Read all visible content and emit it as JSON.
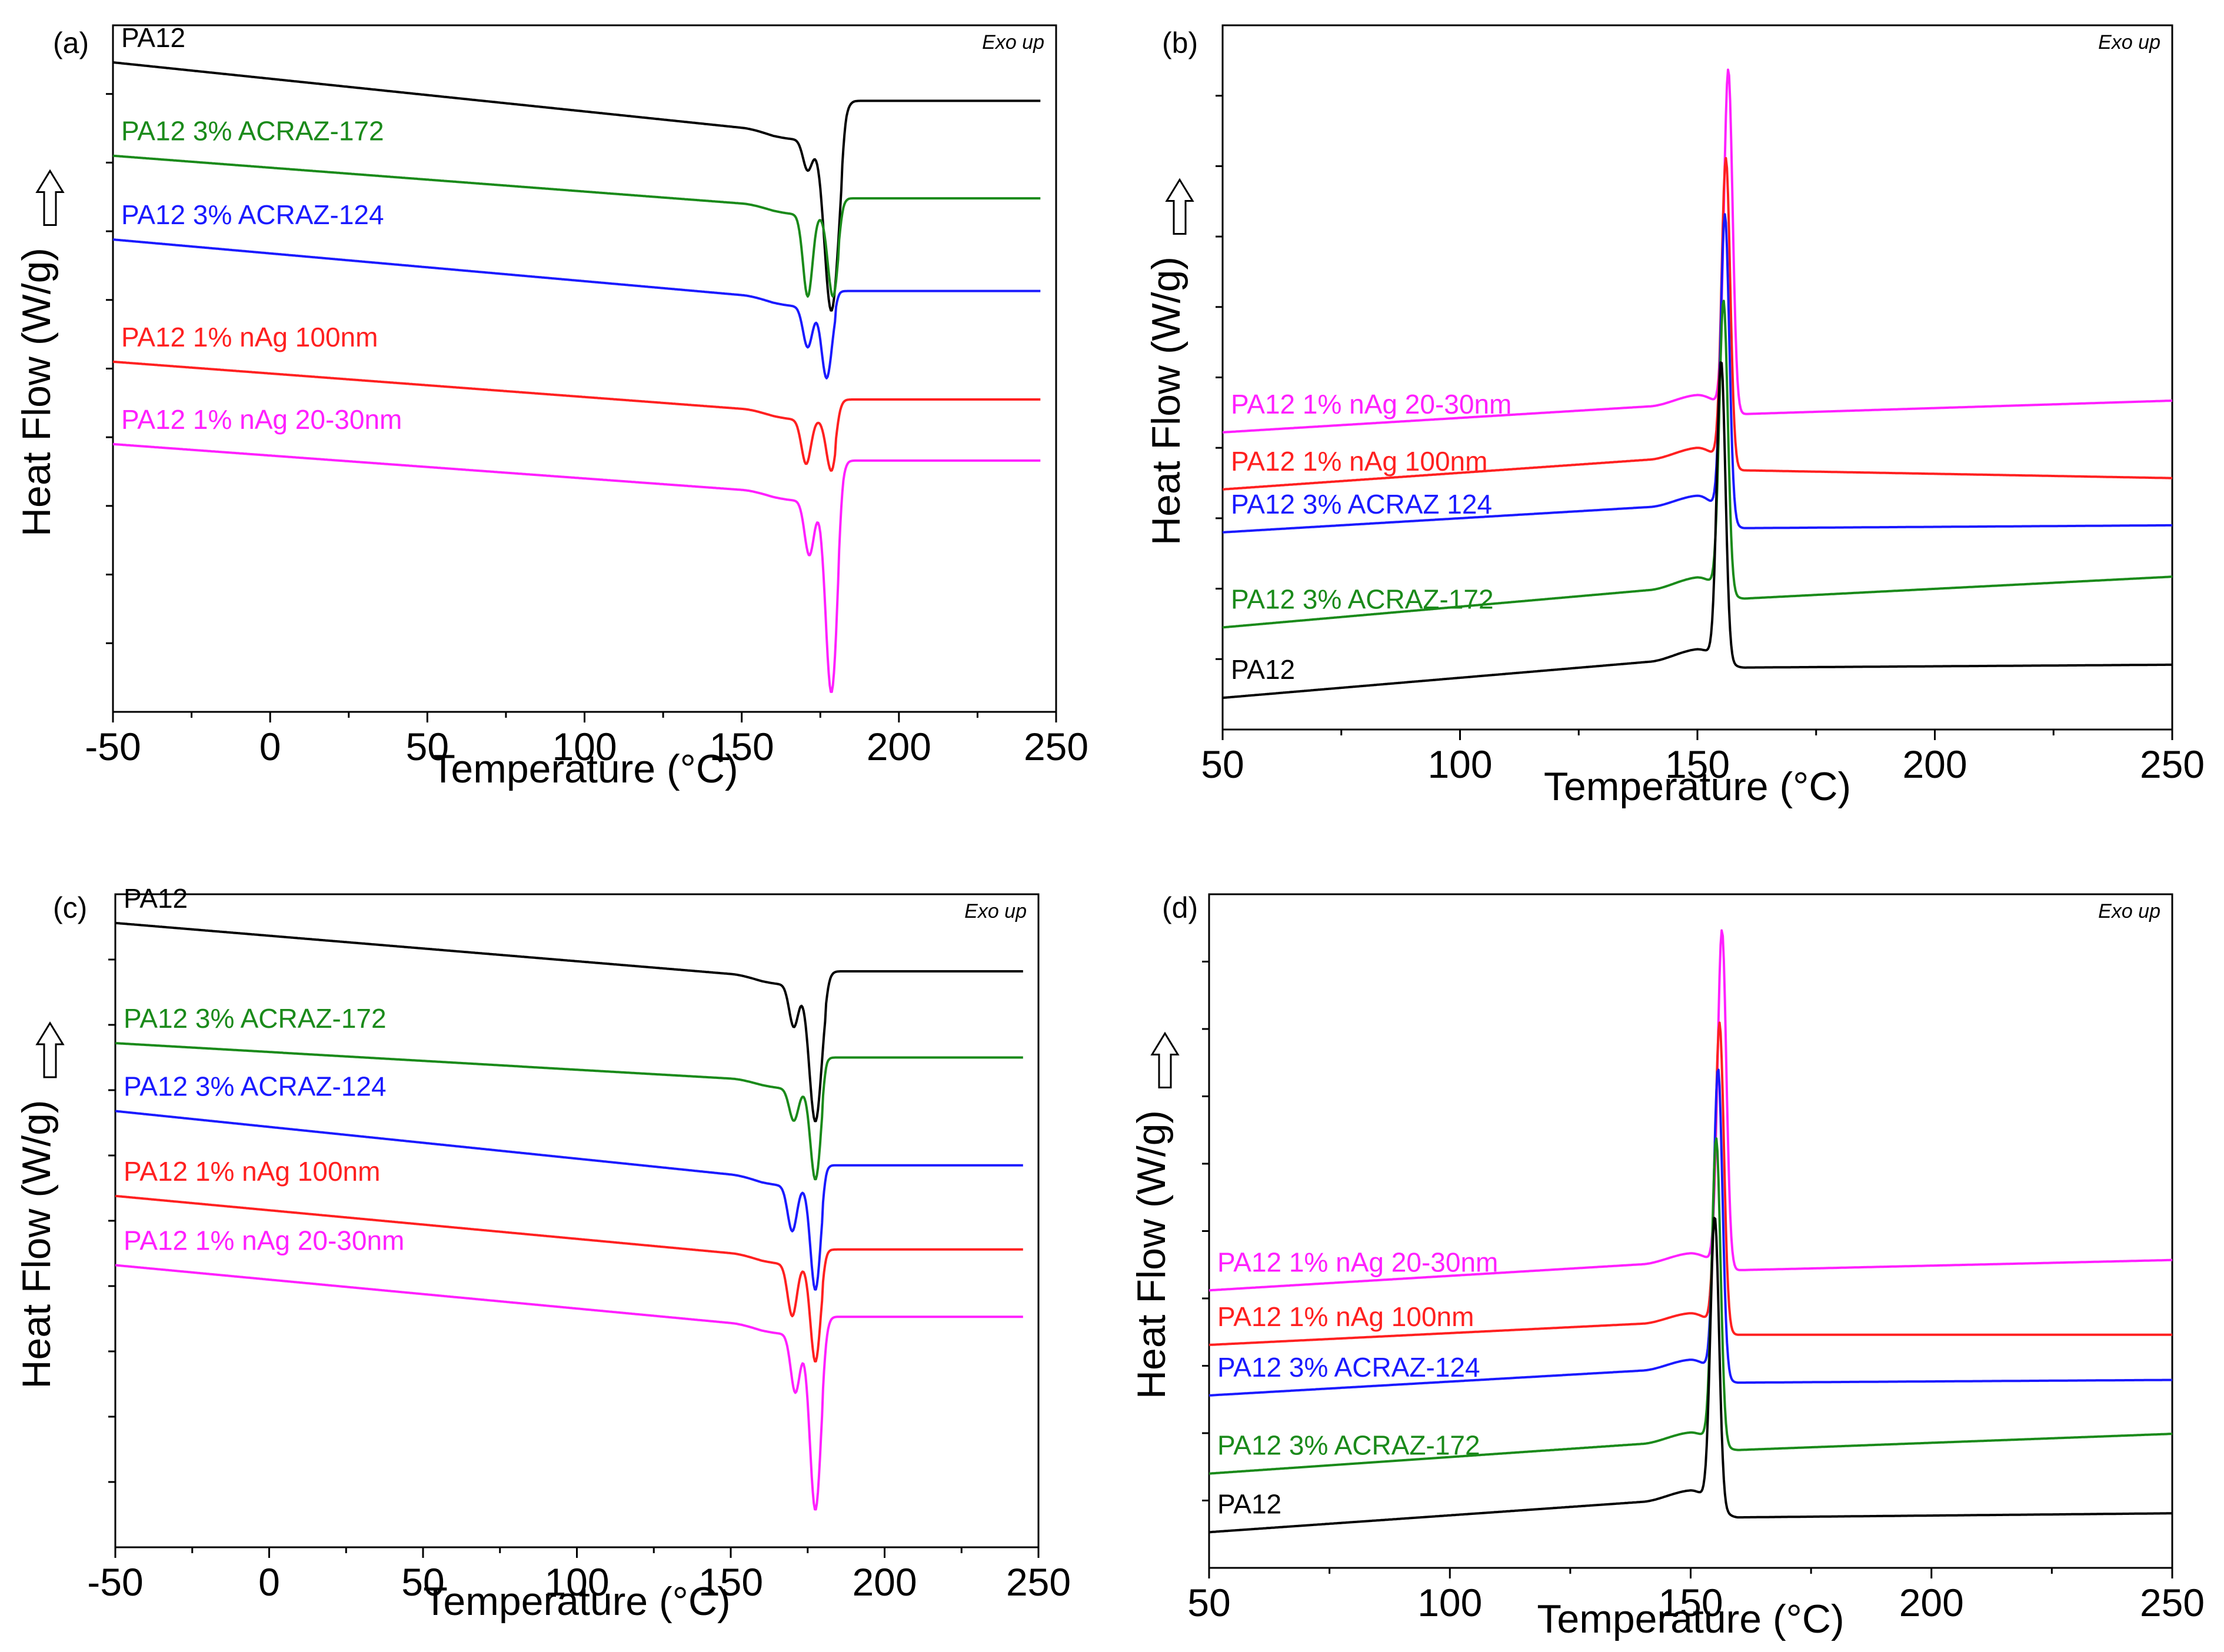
{
  "figure": {
    "exo_label": "Exo up",
    "colors": {
      "PA12": "#000000",
      "PA12 3% ACRAZ-172": "#1a8a1a",
      "PA12 3% ACRAZ-124": "#1a1aff",
      "PA12 1% nAg 100nm": "#ff2020",
      "PA12 1% nAg 20-30nm": "#ff20ff"
    }
  },
  "chart_data": [
    {
      "panel": "(a)",
      "type": "line",
      "kind": "heating",
      "xlabel": "Temperature (°C)",
      "ylabel": "Heat Flow (W/g)",
      "xlim": [
        -50,
        250
      ],
      "xticks": [
        -50,
        0,
        50,
        100,
        150,
        200,
        250
      ],
      "ylim": [
        0,
        100
      ],
      "annotation": "Exo up",
      "series": [
        {
          "name": "PA12",
          "label": "PA12",
          "color_key": "PA12",
          "baseline_start": 94.6,
          "baseline_pre": 84.6,
          "baseline_post": 89.0,
          "peaks": [
            {
              "x": 171,
              "depth": 4.5,
              "width": 1.5
            },
            {
              "x": 178.5,
              "depth": 25,
              "width": 2.2
            }
          ],
          "onset": 182
        },
        {
          "name": "PA12 3% ACRAZ-172",
          "label": "PA12 3% ACRAZ-172",
          "color_key": "PA12 3% ACRAZ-172",
          "baseline_start": 81.0,
          "baseline_pre": 73.7,
          "baseline_post": 74.8,
          "peaks": [
            {
              "x": 171,
              "depth": 12,
              "width": 1.5
            },
            {
              "x": 179,
              "depth": 12,
              "width": 1.6
            }
          ],
          "onset": 181
        },
        {
          "name": "PA12 3% ACRAZ-124",
          "label": "PA12 3% ACRAZ-124",
          "color_key": "PA12 3% ACRAZ-124",
          "baseline_start": 68.8,
          "baseline_pre": 60.3,
          "baseline_post": 61.3,
          "peaks": [
            {
              "x": 171,
              "depth": 6,
              "width": 1.5
            },
            {
              "x": 177,
              "depth": 10.5,
              "width": 1.6
            }
          ],
          "onset": 180
        },
        {
          "name": "PA12 1% nAg 100nm",
          "label": "PA12 1% nAg 100nm",
          "color_key": "PA12 1% nAg 100nm",
          "baseline_start": 51.0,
          "baseline_pre": 43.8,
          "baseline_post": 45.5,
          "peaks": [
            {
              "x": 170.5,
              "depth": 6.5,
              "width": 1.5
            },
            {
              "x": 178.5,
              "depth": 7.5,
              "width": 1.6
            }
          ],
          "onset": 180
        },
        {
          "name": "PA12 1% nAg 20-30nm",
          "label": "PA12 1% nAg 20-30nm",
          "color_key": "PA12 1% nAg 20-30nm",
          "baseline_start": 39.0,
          "baseline_pre": 32.0,
          "baseline_post": 36.6,
          "peaks": [
            {
              "x": 171.5,
              "depth": 8,
              "width": 1.5
            },
            {
              "x": 178.5,
              "depth": 28,
              "width": 1.8
            }
          ],
          "onset": 181
        }
      ]
    },
    {
      "panel": "(b)",
      "type": "line",
      "kind": "cooling",
      "xlabel": "Temperature (°C)",
      "ylabel": "Heat Flow (W/g)",
      "xlim": [
        50,
        250
      ],
      "xticks": [
        50,
        100,
        150,
        200,
        250
      ],
      "ylim": [
        0,
        100
      ],
      "annotation": "Exo up",
      "series": [
        {
          "name": "PA12 1% nAg 20-30nm",
          "label": "PA12 1% nAg 20-30nm",
          "color_key": "PA12 1% nAg 20-30nm",
          "start": 42.2,
          "pre": 46.3,
          "peak_x": 156.5,
          "peak": 96.0,
          "post": 44.8,
          "end": 46.7
        },
        {
          "name": "PA12 1% nAg 100nm",
          "label": "PA12 1% nAg 100nm",
          "color_key": "PA12 1% nAg 100nm",
          "start": 34.1,
          "pre": 38.8,
          "peak_x": 156.0,
          "peak": 83.5,
          "post": 36.8,
          "end": 35.7
        },
        {
          "name": "PA12 3% ACRAZ 124",
          "label": "PA12 3% ACRAZ 124",
          "color_key": "PA12 3% ACRAZ-124",
          "start": 28.0,
          "pre": 32.0,
          "peak_x": 155.8,
          "peak": 76.3,
          "post": 28.6,
          "end": 29.0
        },
        {
          "name": "PA12 3% ACRAZ-172",
          "label": "PA12 3% ACRAZ-172",
          "color_key": "PA12 3% ACRAZ-172",
          "start": 14.5,
          "pre": 20.4,
          "peak_x": 155.5,
          "peak": 63.0,
          "post": 18.6,
          "end": 21.7
        },
        {
          "name": "PA12",
          "label": "PA12",
          "color_key": "PA12",
          "start": 4.5,
          "pre": 10.2,
          "peak_x": 155.0,
          "peak": 54.0,
          "post": 8.8,
          "end": 9.2
        }
      ]
    },
    {
      "panel": "(c)",
      "type": "line",
      "kind": "heating",
      "xlabel": "Temperature (°C)",
      "ylabel": "Heat Flow (W/g)",
      "xlim": [
        -50,
        250
      ],
      "xticks": [
        -50,
        0,
        50,
        100,
        150,
        200,
        250
      ],
      "ylim": [
        0,
        100
      ],
      "annotation": "Exo up",
      "series": [
        {
          "name": "PA12",
          "label": "PA12",
          "color_key": "PA12",
          "baseline_start": 95.6,
          "baseline_pre": 87.4,
          "baseline_post": 88.2,
          "peaks": [
            {
              "x": 170.5,
              "depth": 6.5,
              "width": 1.5
            },
            {
              "x": 177.5,
              "depth": 21,
              "width": 2.0
            }
          ],
          "onset": 181
        },
        {
          "name": "PA12 3% ACRAZ-172",
          "label": "PA12 3% ACRAZ-172",
          "color_key": "PA12 3% ACRAZ-172",
          "baseline_start": 77.2,
          "baseline_pre": 71.5,
          "baseline_post": 75.0,
          "peaks": [
            {
              "x": 170.5,
              "depth": 5,
              "width": 1.5
            },
            {
              "x": 177.5,
              "depth": 14,
              "width": 1.6
            }
          ],
          "onset": 180
        },
        {
          "name": "PA12 3% ACRAZ-124",
          "label": "PA12 3% ACRAZ-124",
          "color_key": "PA12 3% ACRAZ-124",
          "baseline_start": 66.8,
          "baseline_pre": 56.6,
          "baseline_post": 58.5,
          "peaks": [
            {
              "x": 170,
              "depth": 7,
              "width": 1.5
            },
            {
              "x": 177.5,
              "depth": 16,
              "width": 1.6
            }
          ],
          "onset": 180
        },
        {
          "name": "PA12 1% nAg 100nm",
          "label": "PA12 1% nAg 100nm",
          "color_key": "PA12 1% nAg 100nm",
          "baseline_start": 53.8,
          "baseline_pre": 44.6,
          "baseline_post": 45.6,
          "peaks": [
            {
              "x": 170,
              "depth": 8,
              "width": 1.5
            },
            {
              "x": 177.5,
              "depth": 15,
              "width": 1.6
            }
          ],
          "onset": 180
        },
        {
          "name": "PA12 1% nAg 20-30nm",
          "label": "PA12 1% nAg 20-30nm",
          "color_key": "PA12 1% nAg 20-30nm",
          "baseline_start": 43.2,
          "baseline_pre": 33.9,
          "baseline_post": 35.3,
          "peaks": [
            {
              "x": 171,
              "depth": 9,
              "width": 1.5
            },
            {
              "x": 177.5,
              "depth": 27,
              "width": 1.8
            }
          ],
          "onset": 180
        }
      ]
    },
    {
      "panel": "(d)",
      "type": "line",
      "kind": "cooling",
      "xlabel": "Temperature (°C)",
      "ylabel": "Heat Flow (W/g)",
      "xlim": [
        50,
        250
      ],
      "xticks": [
        50,
        100,
        150,
        200,
        250
      ],
      "ylim": [
        0,
        100
      ],
      "annotation": "Exo up",
      "series": [
        {
          "name": "PA12 1% nAg 20-30nm",
          "label": "PA12 1% nAg 20-30nm",
          "color_key": "PA12 1% nAg 20-30nm",
          "start": 41.2,
          "pre": 45.5,
          "peak_x": 156.5,
          "peak": 96.8,
          "post": 44.2,
          "end": 45.7
        },
        {
          "name": "PA12 1% nAg 100nm",
          "label": "PA12 1% nAg 100nm",
          "color_key": "PA12 1% nAg 100nm",
          "start": 33.1,
          "pre": 36.6,
          "peak_x": 156.0,
          "peak": 83.3,
          "post": 34.6,
          "end": 34.6
        },
        {
          "name": "PA12 3% ACRAZ-124",
          "label": "PA12 3% ACRAZ-124",
          "color_key": "PA12 3% ACRAZ-124",
          "start": 25.6,
          "pre": 29.7,
          "peak_x": 155.7,
          "peak": 76.5,
          "post": 27.5,
          "end": 27.9
        },
        {
          "name": "PA12 3% ACRAZ-172",
          "label": "PA12 3% ACRAZ-172",
          "color_key": "PA12 3% ACRAZ-172",
          "start": 14.0,
          "pre": 18.9,
          "peak_x": 155.3,
          "peak": 65.5,
          "post": 17.5,
          "end": 19.9
        },
        {
          "name": "PA12",
          "label": "PA12",
          "color_key": "PA12",
          "start": 5.3,
          "pre": 10.3,
          "peak_x": 155.0,
          "peak": 54.5,
          "post": 7.5,
          "end": 8.1
        }
      ]
    }
  ]
}
